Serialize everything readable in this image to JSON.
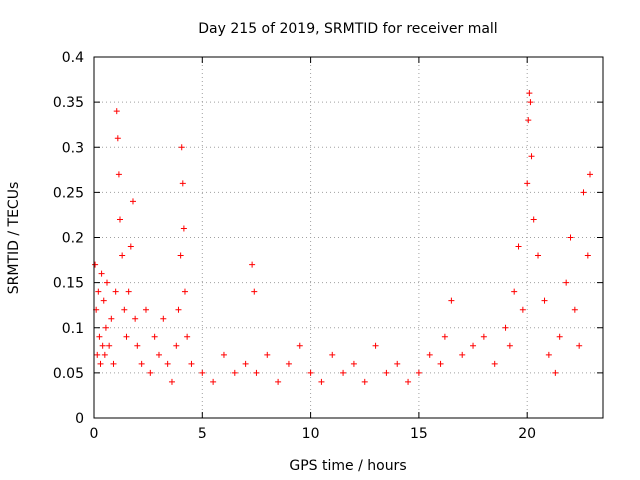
{
  "chart_data": {
    "type": "scatter",
    "title": "Day 215 of 2019, SRMTID for receiver mall",
    "xlabel": "GPS time / hours",
    "ylabel": "SRMTID / TECUs",
    "xlim": [
      0,
      23.5
    ],
    "ylim": [
      0,
      0.4
    ],
    "xticks": [
      0,
      5,
      10,
      15,
      20
    ],
    "yticks": [
      0,
      0.05,
      0.1,
      0.15,
      0.2,
      0.25,
      0.3,
      0.35,
      0.4
    ],
    "ytick_labels": [
      "0",
      "0.05",
      "0.1",
      "0.15",
      "0.2",
      "0.25",
      "0.3",
      "0.35",
      "0.4"
    ],
    "grid": true,
    "marker": "plus",
    "color": "#ff0000",
    "series": [
      {
        "name": "SRMTID",
        "x": [
          0.05,
          0.1,
          0.15,
          0.2,
          0.25,
          0.3,
          0.35,
          0.4,
          0.45,
          0.5,
          0.55,
          0.6,
          0.7,
          0.8,
          0.9,
          1.0,
          1.05,
          1.1,
          1.15,
          1.2,
          1.3,
          1.4,
          1.5,
          1.6,
          1.7,
          1.8,
          1.9,
          2.0,
          2.2,
          2.4,
          2.6,
          2.8,
          3.0,
          3.2,
          3.4,
          3.6,
          3.8,
          3.9,
          4.0,
          4.05,
          4.1,
          4.15,
          4.2,
          4.3,
          4.5,
          5.0,
          5.5,
          6.0,
          6.5,
          7.0,
          7.3,
          7.4,
          7.5,
          8.0,
          8.5,
          9.0,
          9.5,
          10.0,
          10.5,
          11.0,
          11.5,
          12.0,
          12.5,
          13.0,
          13.5,
          14.0,
          14.5,
          15.0,
          15.5,
          16.0,
          16.2,
          16.5,
          17.0,
          17.5,
          18.0,
          18.5,
          19.0,
          19.2,
          19.4,
          19.6,
          19.8,
          20.0,
          20.05,
          20.1,
          20.15,
          20.2,
          20.3,
          20.5,
          20.8,
          21.0,
          21.3,
          21.5,
          21.8,
          22.0,
          22.2,
          22.4,
          22.6,
          22.8,
          22.9
        ],
        "y": [
          0.17,
          0.12,
          0.07,
          0.14,
          0.09,
          0.06,
          0.16,
          0.08,
          0.13,
          0.07,
          0.1,
          0.15,
          0.08,
          0.11,
          0.06,
          0.14,
          0.34,
          0.31,
          0.27,
          0.22,
          0.18,
          0.12,
          0.09,
          0.14,
          0.19,
          0.24,
          0.11,
          0.08,
          0.06,
          0.12,
          0.05,
          0.09,
          0.07,
          0.11,
          0.06,
          0.04,
          0.08,
          0.12,
          0.18,
          0.3,
          0.26,
          0.21,
          0.14,
          0.09,
          0.06,
          0.05,
          0.04,
          0.07,
          0.05,
          0.06,
          0.17,
          0.14,
          0.05,
          0.07,
          0.04,
          0.06,
          0.08,
          0.05,
          0.04,
          0.07,
          0.05,
          0.06,
          0.04,
          0.08,
          0.05,
          0.06,
          0.04,
          0.05,
          0.07,
          0.06,
          0.09,
          0.13,
          0.07,
          0.08,
          0.09,
          0.06,
          0.1,
          0.08,
          0.14,
          0.19,
          0.12,
          0.26,
          0.33,
          0.36,
          0.35,
          0.29,
          0.22,
          0.18,
          0.13,
          0.07,
          0.05,
          0.09,
          0.15,
          0.2,
          0.12,
          0.08,
          0.25,
          0.18,
          0.27
        ]
      }
    ]
  }
}
